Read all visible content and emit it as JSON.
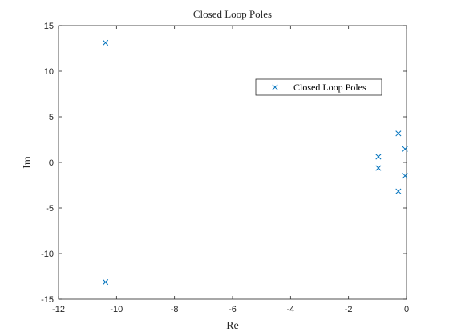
{
  "chart_data": {
    "type": "scatter",
    "title": "Closed Loop Poles",
    "xlabel": "Re",
    "ylabel": "Im",
    "xlim": [
      -12,
      0
    ],
    "ylim": [
      -15,
      15
    ],
    "xticks": [
      -12,
      -10,
      -8,
      -6,
      -4,
      -2,
      0
    ],
    "yticks": [
      -15,
      -10,
      -5,
      0,
      5,
      10,
      15
    ],
    "xtick_labels": [
      "-12",
      "-10",
      "-8",
      "-6",
      "-4",
      "-2",
      "0"
    ],
    "ytick_labels": [
      "-15",
      "-10",
      "-5",
      "0",
      "5",
      "10",
      "15"
    ],
    "grid": false,
    "legend_position": "top-right",
    "marker": "x",
    "marker_color": "#0072BD",
    "series": [
      {
        "name": "Closed Loop Poles",
        "points": [
          {
            "x": -10.38,
            "y": 13.12
          },
          {
            "x": -10.38,
            "y": -13.12
          },
          {
            "x": -0.97,
            "y": 0.62
          },
          {
            "x": -0.97,
            "y": -0.62
          },
          {
            "x": -0.28,
            "y": 3.17
          },
          {
            "x": -0.28,
            "y": -3.17
          },
          {
            "x": -0.05,
            "y": 1.47
          },
          {
            "x": -0.05,
            "y": -1.47
          }
        ]
      }
    ]
  }
}
